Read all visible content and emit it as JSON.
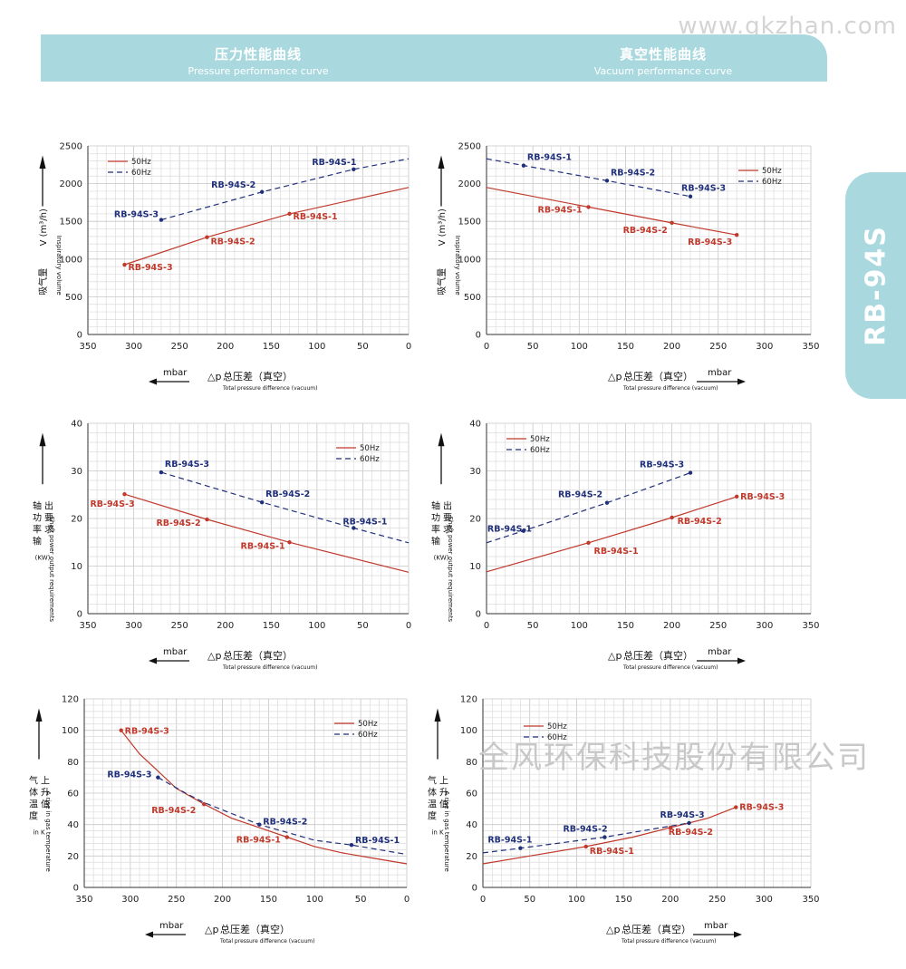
{
  "watermark": "www.gkzhan.com",
  "watermark_company": "全风环保科技股份有限公司",
  "header": {
    "left_cn": "压力性能曲线",
    "left_en": "Pressure performance curve",
    "right_cn": "真空性能曲线",
    "right_en": "Vacuum performance curve"
  },
  "side_tab": "RB-94S",
  "colors": {
    "hz50": "#c0392b",
    "hz60": "#1f2f7a",
    "header_bg": "#a9d9df"
  },
  "xaxis_text": {
    "symbol": "△p",
    "cn": "总压差（真空）",
    "en": "Total pressure difference (vacuum)",
    "unit": "mbar"
  },
  "legend": {
    "s50": "50Hz",
    "s60": "60Hz"
  },
  "chart_data": [
    {
      "id": "pressure-volume",
      "type": "line",
      "x_reversed": true,
      "xlim": [
        0,
        350
      ],
      "ylim": [
        0,
        2500
      ],
      "xticks": [
        350,
        300,
        250,
        200,
        150,
        100,
        50,
        0
      ],
      "yticks": [
        0,
        500,
        1000,
        1500,
        2000,
        2500
      ],
      "ylabel_cn": "吸气量",
      "ylabel_en": "Inspiratory volume",
      "ylabel_unit": "V (m³/h)",
      "legend_pos": "top-left",
      "series": [
        {
          "name": "50Hz",
          "style": "solid",
          "x": [
            310,
            220,
            130,
            0
          ],
          "y": [
            925,
            1290,
            1600,
            1950
          ],
          "points": [
            {
              "x": 310,
              "y": 925,
              "label": "RB-94S-3"
            },
            {
              "x": 220,
              "y": 1290,
              "label": "RB-94S-2"
            },
            {
              "x": 130,
              "y": 1600,
              "label": "RB-94S-1"
            }
          ]
        },
        {
          "name": "60Hz",
          "style": "dashed",
          "x": [
            270,
            160,
            60,
            0
          ],
          "y": [
            1520,
            1890,
            2190,
            2330
          ],
          "points": [
            {
              "x": 270,
              "y": 1520,
              "label": "RB-94S-3"
            },
            {
              "x": 160,
              "y": 1890,
              "label": "RB-94S-2"
            },
            {
              "x": 60,
              "y": 2190,
              "label": "RB-94S-1"
            }
          ]
        }
      ]
    },
    {
      "id": "vacuum-volume",
      "type": "line",
      "x_reversed": false,
      "xlim": [
        0,
        350
      ],
      "ylim": [
        0,
        2500
      ],
      "xticks": [
        0,
        50,
        100,
        150,
        200,
        250,
        300,
        350
      ],
      "yticks": [
        0,
        500,
        1000,
        1500,
        2000,
        2500
      ],
      "ylabel_cn": "吸气量",
      "ylabel_en": "Inspiratory volume",
      "ylabel_unit": "V (m³/h)",
      "legend_pos": "top-right",
      "series": [
        {
          "name": "50Hz",
          "style": "solid",
          "x": [
            0,
            110,
            200,
            270
          ],
          "y": [
            1950,
            1690,
            1480,
            1320
          ],
          "points": [
            {
              "x": 110,
              "y": 1690,
              "label": "RB-94S-1"
            },
            {
              "x": 200,
              "y": 1480,
              "label": "RB-94S-2"
            },
            {
              "x": 270,
              "y": 1320,
              "label": "RB-94S-3"
            }
          ]
        },
        {
          "name": "60Hz",
          "style": "dashed",
          "x": [
            0,
            40,
            130,
            220
          ],
          "y": [
            2330,
            2240,
            2040,
            1830
          ],
          "points": [
            {
              "x": 40,
              "y": 2240,
              "label": "RB-94S-1"
            },
            {
              "x": 130,
              "y": 2040,
              "label": "RB-94S-2"
            },
            {
              "x": 220,
              "y": 1830,
              "label": "RB-94S-3"
            }
          ]
        }
      ]
    },
    {
      "id": "pressure-power",
      "type": "line",
      "x_reversed": true,
      "xlim": [
        0,
        350
      ],
      "ylim": [
        0,
        40
      ],
      "xticks": [
        350,
        300,
        250,
        200,
        150,
        100,
        50,
        0
      ],
      "yticks": [
        0,
        10,
        20,
        30,
        40
      ],
      "ylabel_cn": "轴功率输出要求",
      "ylabel_en": "Shaft power output requirements",
      "ylabel_unit": "(KW)",
      "legend_pos": "top-right",
      "series": [
        {
          "name": "50Hz",
          "style": "solid",
          "x": [
            310,
            220,
            130,
            0
          ],
          "y": [
            25.1,
            19.8,
            15.0,
            8.7
          ],
          "points": [
            {
              "x": 310,
              "y": 25.1,
              "label": "RB-94S-3"
            },
            {
              "x": 220,
              "y": 19.8,
              "label": "RB-94S-2"
            },
            {
              "x": 130,
              "y": 15.0,
              "label": "RB-94S-1"
            }
          ]
        },
        {
          "name": "60Hz",
          "style": "dashed",
          "x": [
            270,
            160,
            60,
            0
          ],
          "y": [
            29.7,
            23.4,
            18.0,
            14.9
          ],
          "points": [
            {
              "x": 270,
              "y": 29.7,
              "label": "RB-94S-3"
            },
            {
              "x": 160,
              "y": 23.4,
              "label": "RB-94S-2"
            },
            {
              "x": 60,
              "y": 18.0,
              "label": "RB-94S-1"
            }
          ]
        }
      ]
    },
    {
      "id": "vacuum-power",
      "type": "line",
      "x_reversed": false,
      "xlim": [
        0,
        350
      ],
      "ylim": [
        0,
        40
      ],
      "xticks": [
        0,
        50,
        100,
        150,
        200,
        250,
        300,
        350
      ],
      "yticks": [
        0,
        10,
        20,
        30,
        40
      ],
      "ylabel_cn": "轴功率输出要求",
      "ylabel_en": "Shaft power output requirements",
      "ylabel_unit": "(KW)",
      "legend_pos": "top-left",
      "series": [
        {
          "name": "50Hz",
          "style": "solid",
          "x": [
            0,
            110,
            200,
            270
          ],
          "y": [
            8.8,
            14.9,
            20.2,
            24.6
          ],
          "points": [
            {
              "x": 110,
              "y": 14.9,
              "label": "RB-94S-1"
            },
            {
              "x": 200,
              "y": 20.2,
              "label": "RB-94S-2"
            },
            {
              "x": 270,
              "y": 24.6,
              "label": "RB-94S-3"
            }
          ]
        },
        {
          "name": "60Hz",
          "style": "dashed",
          "x": [
            0,
            40,
            130,
            220
          ],
          "y": [
            14.9,
            17.4,
            23.3,
            29.6
          ],
          "points": [
            {
              "x": 40,
              "y": 17.4,
              "label": "RB-94S-1"
            },
            {
              "x": 130,
              "y": 23.3,
              "label": "RB-94S-2"
            },
            {
              "x": 220,
              "y": 29.6,
              "label": "RB-94S-3"
            }
          ]
        }
      ]
    },
    {
      "id": "pressure-temperature",
      "type": "line",
      "x_reversed": true,
      "xlim": [
        0,
        350
      ],
      "ylim": [
        0,
        120
      ],
      "xticks": [
        350,
        300,
        250,
        200,
        150,
        100,
        50,
        0
      ],
      "yticks": [
        0,
        20,
        40,
        60,
        80,
        100,
        120
      ],
      "ylabel_cn": "气体温度上升值",
      "ylabel_en": "A rise in gas temperature",
      "ylabel_unit": "in K",
      "legend_pos": "top-right",
      "series": [
        {
          "name": "50Hz",
          "style": "solid",
          "x": [
            310,
            290,
            270,
            250,
            220,
            190,
            160,
            130,
            100,
            70,
            40,
            0
          ],
          "y": [
            100,
            85,
            74,
            63,
            53,
            44,
            38,
            32,
            26,
            22,
            19,
            15
          ],
          "points": [
            {
              "x": 310,
              "y": 100,
              "label": "RB-94S-3"
            },
            {
              "x": 220,
              "y": 53,
              "label": "RB-94S-2"
            },
            {
              "x": 130,
              "y": 32,
              "label": "RB-94S-1"
            }
          ]
        },
        {
          "name": "60Hz",
          "style": "dashed",
          "x": [
            270,
            240,
            220,
            190,
            160,
            130,
            100,
            60,
            30,
            0
          ],
          "y": [
            70,
            60,
            54,
            47,
            40,
            35,
            30,
            27,
            24,
            21
          ],
          "points": [
            {
              "x": 270,
              "y": 70,
              "label": "RB-94S-3"
            },
            {
              "x": 160,
              "y": 40,
              "label": "RB-94S-2"
            },
            {
              "x": 60,
              "y": 27,
              "label": "RB-94S-1"
            }
          ]
        }
      ]
    },
    {
      "id": "vacuum-temperature",
      "type": "line",
      "x_reversed": false,
      "xlim": [
        0,
        350
      ],
      "ylim": [
        0,
        120
      ],
      "xticks": [
        0,
        50,
        100,
        150,
        200,
        250,
        300,
        350
      ],
      "yticks": [
        0,
        20,
        40,
        60,
        80,
        100,
        120
      ],
      "ylabel_cn": "气体温度上升值",
      "ylabel_en": "A rise in gas temperature",
      "ylabel_unit": "in K",
      "legend_pos": "top-left",
      "series": [
        {
          "name": "50Hz",
          "style": "solid",
          "x": [
            0,
            50,
            110,
            160,
            200,
            240,
            270
          ],
          "y": [
            15,
            20,
            26,
            32,
            38,
            44,
            51
          ],
          "points": [
            {
              "x": 110,
              "y": 26,
              "label": "RB-94S-1"
            },
            {
              "x": 200,
              "y": 38,
              "label": "RB-94S-2"
            },
            {
              "x": 270,
              "y": 51,
              "label": "RB-94S-3"
            }
          ]
        },
        {
          "name": "60Hz",
          "style": "dashed",
          "x": [
            0,
            40,
            130,
            220
          ],
          "y": [
            22,
            25,
            32,
            41
          ],
          "points": [
            {
              "x": 40,
              "y": 25,
              "label": "RB-94S-1"
            },
            {
              "x": 130,
              "y": 32,
              "label": "RB-94S-2"
            },
            {
              "x": 220,
              "y": 41,
              "label": "RB-94S-3"
            }
          ]
        }
      ]
    }
  ]
}
